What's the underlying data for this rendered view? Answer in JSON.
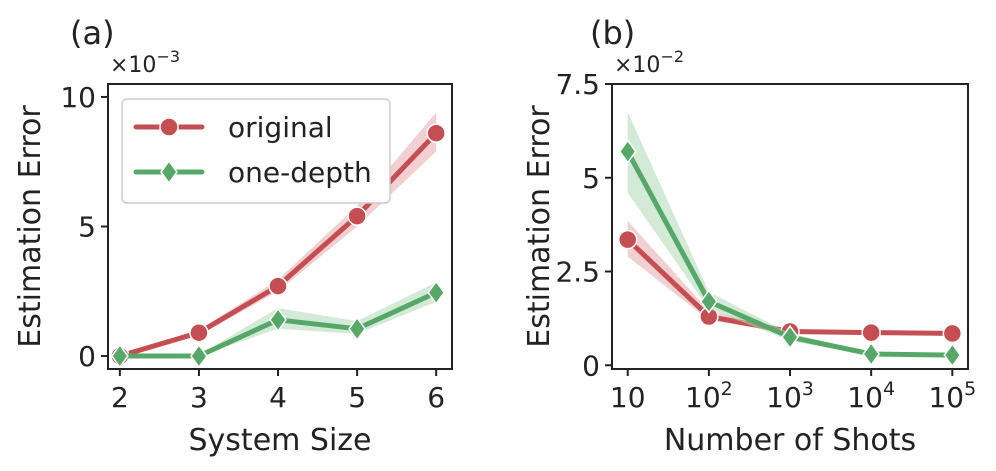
{
  "colors": {
    "original": "#c44e52",
    "original_band": "#e8a9ab",
    "onedepth": "#55a868",
    "onedepth_band": "#aed8b6",
    "axis": "#222222"
  },
  "chart_data": [
    {
      "type": "line",
      "panel_label": "(a)",
      "xlabel": "System Size",
      "ylabel": "Estimation Error",
      "multiplier": {
        "base": "×10",
        "exp": "−3"
      },
      "x": [
        2,
        3,
        4,
        5,
        6
      ],
      "xlim": [
        1.85,
        6.2
      ],
      "ylim": [
        -0.5,
        10.5
      ],
      "xticks": [
        {
          "v": 2,
          "label": "2"
        },
        {
          "v": 3,
          "label": "3"
        },
        {
          "v": 4,
          "label": "4"
        },
        {
          "v": 5,
          "label": "5"
        },
        {
          "v": 6,
          "label": "6"
        }
      ],
      "yticks": [
        {
          "v": 0,
          "label": "0"
        },
        {
          "v": 5,
          "label": "5"
        },
        {
          "v": 10,
          "label": "10"
        }
      ],
      "legend": {
        "location": "upper-left",
        "entries": [
          "original",
          "one-depth"
        ]
      },
      "series": [
        {
          "name": "original",
          "marker": "circle",
          "values": [
            0.0,
            0.9,
            2.7,
            5.4,
            8.6
          ],
          "lower": [
            0.0,
            0.8,
            2.5,
            5.0,
            7.9
          ],
          "upper": [
            0.05,
            1.0,
            2.95,
            5.8,
            9.4
          ]
        },
        {
          "name": "one-depth",
          "marker": "diamond",
          "values": [
            0.0,
            0.0,
            1.4,
            1.05,
            2.45
          ],
          "lower": [
            0.0,
            0.0,
            1.05,
            0.85,
            2.1
          ],
          "upper": [
            0.05,
            0.05,
            1.85,
            1.35,
            2.85
          ]
        }
      ]
    },
    {
      "type": "line",
      "panel_label": "(b)",
      "xlabel": "Number of Shots",
      "ylabel": "Estimation Error",
      "multiplier": {
        "base": "×10",
        "exp": "−2"
      },
      "xscale": "log",
      "x": [
        10,
        100,
        1000,
        10000,
        100000
      ],
      "xlim": [
        6.4,
        156000
      ],
      "ylim": [
        -0.1,
        7.5
      ],
      "xticks": [
        {
          "v": 10,
          "label": "10",
          "sup": ""
        },
        {
          "v": 100,
          "label": "10",
          "sup": "2"
        },
        {
          "v": 1000,
          "label": "10",
          "sup": "3"
        },
        {
          "v": 10000,
          "label": "10",
          "sup": "4"
        },
        {
          "v": 100000,
          "label": "10",
          "sup": "5"
        }
      ],
      "yticks": [
        {
          "v": 0,
          "label": "0"
        },
        {
          "v": 2.5,
          "label": "2.5"
        },
        {
          "v": 5,
          "label": "5"
        },
        {
          "v": 7.5,
          "label": "7.5"
        }
      ],
      "series": [
        {
          "name": "original",
          "marker": "circle",
          "values": [
            3.35,
            1.3,
            0.9,
            0.87,
            0.85
          ],
          "lower": [
            2.9,
            1.2,
            0.85,
            0.84,
            0.82
          ],
          "upper": [
            3.85,
            1.45,
            0.95,
            0.9,
            0.88
          ]
        },
        {
          "name": "one-depth",
          "marker": "diamond",
          "values": [
            5.7,
            1.7,
            0.75,
            0.3,
            0.27
          ],
          "lower": [
            4.6,
            1.5,
            0.65,
            0.26,
            0.24
          ],
          "upper": [
            6.75,
            1.95,
            0.85,
            0.34,
            0.3
          ]
        }
      ]
    }
  ]
}
